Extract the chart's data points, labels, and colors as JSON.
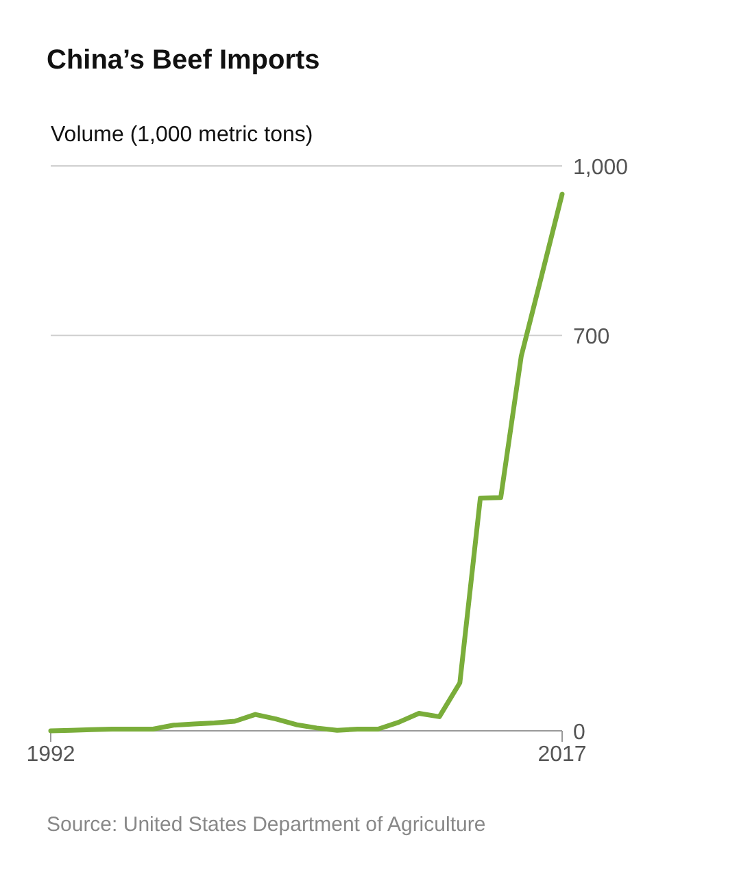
{
  "chart_data": {
    "type": "line",
    "title": "China’s Beef Imports",
    "ylabel": "Volume (1,000 metric tons)",
    "x": [
      1992,
      1993,
      1994,
      1995,
      1996,
      1997,
      1998,
      1999,
      2000,
      2001,
      2002,
      2003,
      2004,
      2005,
      2006,
      2007,
      2008,
      2009,
      2010,
      2011,
      2012,
      2013,
      2014,
      2015,
      2016,
      2017
    ],
    "series": [
      {
        "color": "#7aad3a",
        "values": [
          0,
          1,
          2,
          3,
          3,
          3,
          10,
          12,
          14,
          17,
          29,
          21,
          11,
          5,
          1,
          3,
          3,
          15,
          31,
          25,
          85,
          412,
          413,
          663,
          806,
          950
        ]
      }
    ],
    "xlim": [
      1992,
      2017
    ],
    "xticks": [
      1992,
      2017
    ],
    "ylim": [
      0,
      1000
    ],
    "yticks": [
      0,
      {
        "value": 700,
        "label": "700"
      },
      {
        "value": 1000,
        "label": "1,000"
      }
    ],
    "grid": "y",
    "marker": "none",
    "line_style": "solid",
    "annotations": [
      "Source: United States Department of Agriculture"
    ]
  }
}
